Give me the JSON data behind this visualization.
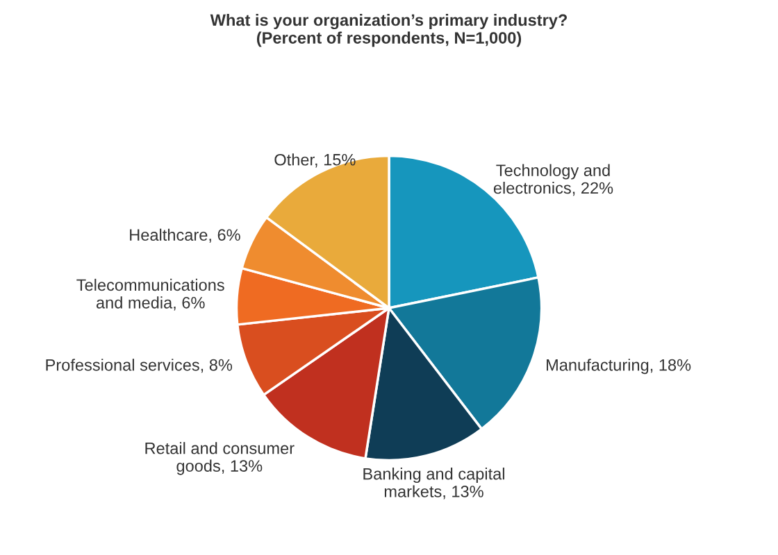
{
  "chart_data": {
    "type": "pie",
    "title": "What is your organization’s primary industry?\n(Percent of respondents, N=1,000)",
    "categories": [
      "Technology and\nelectronics",
      "Manufacturing",
      "Banking and capital\nmarkets",
      "Retail and consumer\ngoods",
      "Professional services",
      "Telecommunications\nand media",
      "Healthcare",
      "Other"
    ],
    "values": [
      22,
      18,
      13,
      13,
      8,
      6,
      6,
      15
    ],
    "value_labels": [
      "22%",
      "18%",
      "13%",
      "13%",
      "8%",
      "6%",
      "6%",
      "15%"
    ],
    "colors": [
      "#1696bd",
      "#127899",
      "#0f3d56",
      "#c0301f",
      "#d94e1f",
      "#ef6b22",
      "#ef8c2f",
      "#e9aa3b"
    ],
    "legend": false
  }
}
